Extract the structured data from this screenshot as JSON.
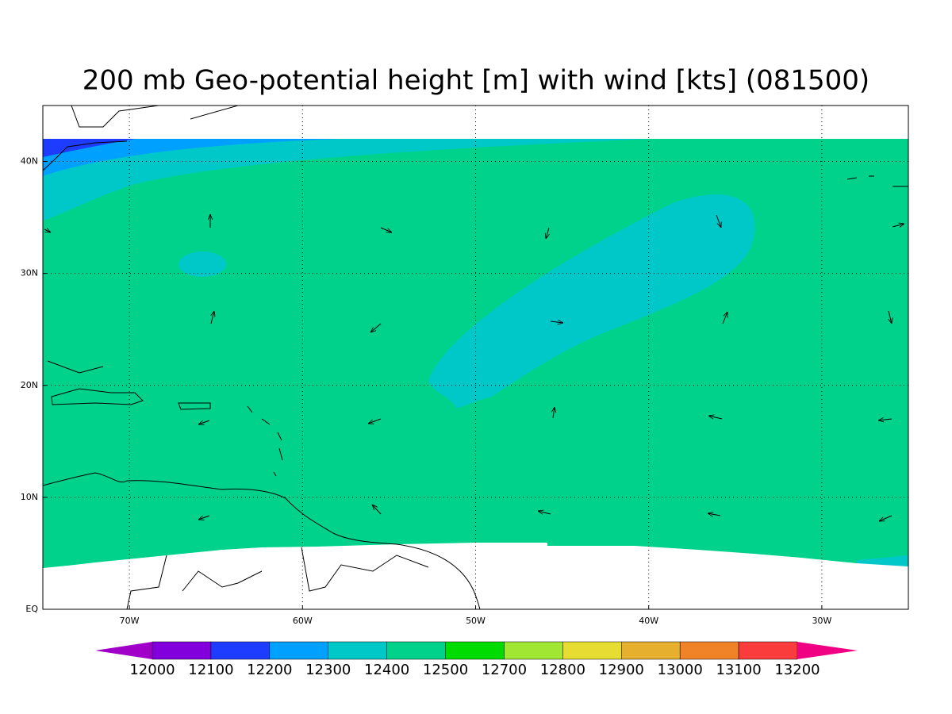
{
  "chart_data": {
    "type": "map",
    "title": "200 mb Geo-potential height [m] with wind [kts] (081500)",
    "xlim": [
      -75,
      -25
    ],
    "ylim": [
      0,
      45
    ],
    "xticks": [
      {
        "value": -70,
        "label": "70W"
      },
      {
        "value": -60,
        "label": "60W"
      },
      {
        "value": -50,
        "label": "50W"
      },
      {
        "value": -40,
        "label": "40W"
      },
      {
        "value": -30,
        "label": "30W"
      }
    ],
    "yticks": [
      {
        "value": 0,
        "label": "EQ"
      },
      {
        "value": 10,
        "label": "10N"
      },
      {
        "value": 20,
        "label": "20N"
      },
      {
        "value": 30,
        "label": "30N"
      },
      {
        "value": 40,
        "label": "40N"
      }
    ],
    "grid": true,
    "colorbar": {
      "levels": [
        12000,
        12100,
        12200,
        12300,
        12400,
        12500,
        12700,
        12800,
        12900,
        13000,
        13100,
        13200
      ],
      "colors": [
        "#a000c8",
        "#8200dc",
        "#1e3cff",
        "#00a0ff",
        "#00c8c8",
        "#00d28c",
        "#00dc00",
        "#a0e632",
        "#e6dc32",
        "#e6af2d",
        "#f08228",
        "#fa3c3c",
        "#f00082"
      ]
    }
  }
}
